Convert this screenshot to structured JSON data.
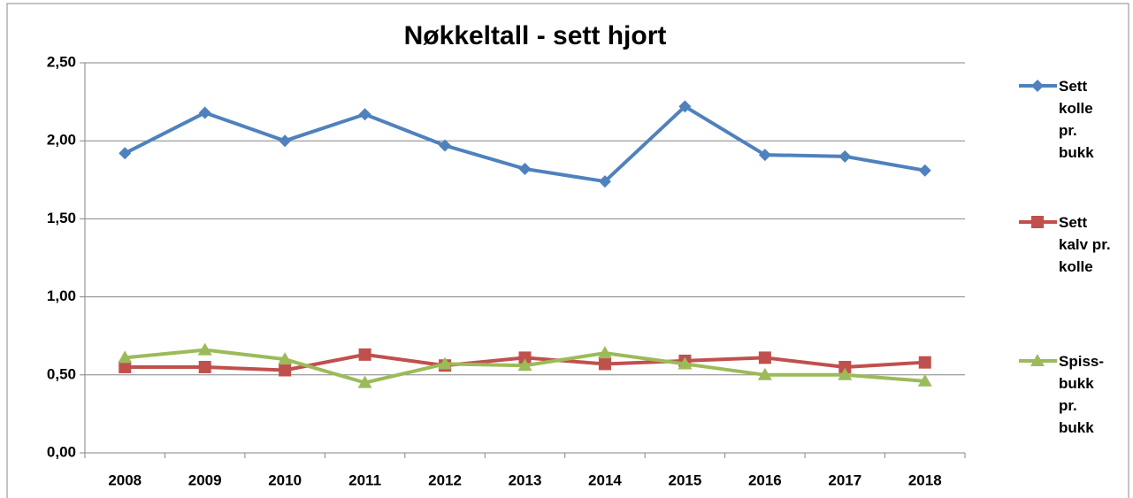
{
  "chart_data": {
    "type": "line",
    "title": "Nøkkeltall - sett hjort",
    "categories": [
      "2008",
      "2009",
      "2010",
      "2011",
      "2012",
      "2013",
      "2014",
      "2015",
      "2016",
      "2017",
      "2018"
    ],
    "series": [
      {
        "name": "Sett kolle pr. bukk",
        "color": "#4f81bd",
        "marker": "diamond",
        "values": [
          1.92,
          2.18,
          2.0,
          2.17,
          1.97,
          1.82,
          1.74,
          2.22,
          1.91,
          1.9,
          1.81
        ]
      },
      {
        "name": "Sett kalv pr. kolle",
        "color": "#c0504d",
        "marker": "square",
        "values": [
          0.55,
          0.55,
          0.53,
          0.63,
          0.56,
          0.61,
          0.57,
          0.59,
          0.61,
          0.55,
          0.58
        ]
      },
      {
        "name": "Spiss-bukk pr. bukk",
        "color": "#9bbb59",
        "marker": "triangle",
        "values": [
          0.61,
          0.66,
          0.6,
          0.45,
          0.57,
          0.56,
          0.64,
          0.57,
          0.5,
          0.5,
          0.46
        ]
      }
    ],
    "ylim": [
      0,
      2.5
    ],
    "yticks": [
      {
        "value": 0,
        "label": "0,00"
      },
      {
        "value": 0.5,
        "label": "0,50"
      },
      {
        "value": 1,
        "label": "1,00"
      },
      {
        "value": 1.5,
        "label": "1,50"
      },
      {
        "value": 2,
        "label": "2,00"
      },
      {
        "value": 2.5,
        "label": "2,50"
      }
    ],
    "grid": true,
    "legend": "right"
  }
}
